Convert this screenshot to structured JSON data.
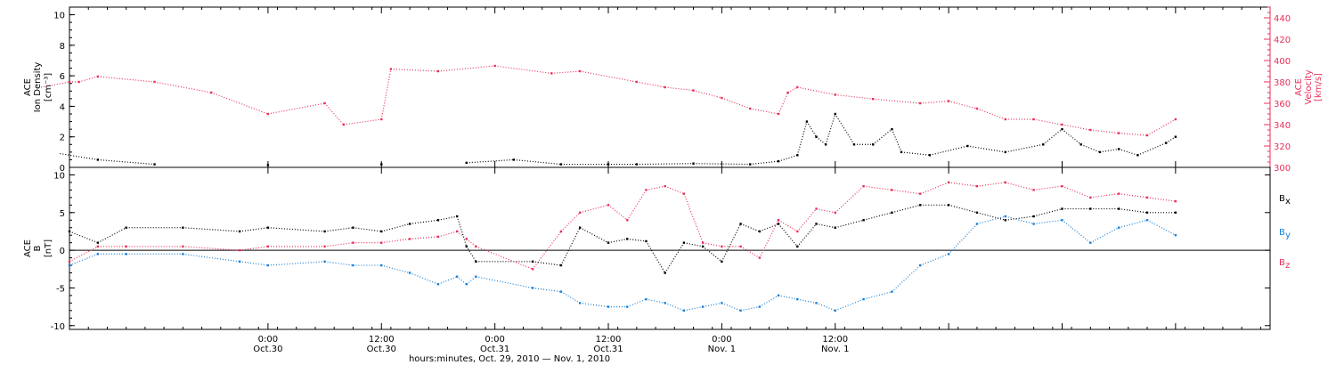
{
  "chart_data": [
    {
      "type": "scatter",
      "panel": "top",
      "title": "",
      "ylabel_left": [
        "ACE",
        "Ion Density",
        "[cm⁻³]"
      ],
      "ylabel_right": [
        "ACE",
        "Velocity",
        "[km/s]"
      ],
      "ylim_left": [
        0,
        10.5
      ],
      "yticks_left": [
        0,
        2,
        4,
        6,
        8,
        10
      ],
      "ylim_right": [
        300,
        450
      ],
      "yticks_right": [
        300,
        320,
        340,
        360,
        380,
        400,
        420,
        440
      ],
      "colors": {
        "density": "#000000",
        "velocity": "#e8305a"
      },
      "series": [
        {
          "name": "Ion Density",
          "axis": "left",
          "color": "#000000",
          "points": [
            [
              2,
              0.9
            ],
            [
              6,
              0.5
            ],
            [
              12,
              0.2
            ],
            [
              24,
              0.15
            ],
            [
              36,
              0.2
            ],
            [
              45,
              0.3
            ],
            [
              50,
              0.5
            ],
            [
              55,
              0.2
            ],
            [
              60,
              0.2
            ],
            [
              63,
              0.2
            ],
            [
              69,
              0.25
            ],
            [
              75,
              0.2
            ],
            [
              78,
              0.4
            ],
            [
              80,
              0.8
            ],
            [
              81,
              3.0
            ],
            [
              82,
              2.0
            ],
            [
              83,
              1.5
            ],
            [
              84,
              3.5
            ],
            [
              86,
              1.5
            ],
            [
              88,
              1.5
            ],
            [
              90,
              2.5
            ],
            [
              91,
              1.0
            ],
            [
              94,
              0.8
            ],
            [
              98,
              1.4
            ],
            [
              102,
              1.0
            ],
            [
              106,
              1.5
            ],
            [
              108,
              2.5
            ],
            [
              110,
              1.5
            ],
            [
              112,
              1.0
            ],
            [
              114,
              1.2
            ],
            [
              116,
              0.8
            ],
            [
              119,
              1.6
            ],
            [
              120,
              2.0
            ]
          ]
        },
        {
          "name": "Velocity",
          "axis": "right",
          "color": "#e8305a",
          "points": [
            [
              0,
              375
            ],
            [
              3,
              380
            ],
            [
              4,
              380
            ],
            [
              6,
              385
            ],
            [
              12,
              380
            ],
            [
              18,
              370
            ],
            [
              24,
              350
            ],
            [
              30,
              360
            ],
            [
              32,
              340
            ],
            [
              36,
              345
            ],
            [
              37,
              392
            ],
            [
              42,
              390
            ],
            [
              48,
              395
            ],
            [
              54,
              388
            ],
            [
              57,
              390
            ],
            [
              63,
              380
            ],
            [
              66,
              375
            ],
            [
              69,
              372
            ],
            [
              72,
              365
            ],
            [
              75,
              355
            ],
            [
              78,
              350
            ],
            [
              79,
              370
            ],
            [
              80,
              375
            ],
            [
              84,
              368
            ],
            [
              88,
              364
            ],
            [
              93,
              360
            ],
            [
              96,
              362
            ],
            [
              99,
              355
            ],
            [
              102,
              345
            ],
            [
              105,
              345
            ],
            [
              108,
              340
            ],
            [
              111,
              335
            ],
            [
              114,
              332
            ],
            [
              117,
              330
            ],
            [
              120,
              345
            ]
          ]
        }
      ]
    },
    {
      "type": "scatter",
      "panel": "bottom",
      "title": "",
      "ylabel": [
        "ACE",
        "B",
        "[nT]"
      ],
      "ylim": [
        -10.5,
        11
      ],
      "yticks": [
        -10,
        -5,
        0,
        5,
        10
      ],
      "xlabel": "hours:minutes, Oct. 29, 2010 — Nov. 1, 2010",
      "x_units": "hours since 0:00 Oct. 29, 2010",
      "xlim": [
        3,
        130
      ],
      "x_major_ticks": [
        24,
        36,
        48,
        60,
        72,
        84,
        96,
        108,
        120,
        132
      ],
      "x_tick_labels": [
        {
          "x": 24,
          "time": "0:00",
          "date": "Oct.30"
        },
        {
          "x": 36,
          "time": "12:00",
          "date": "Oct.30"
        },
        {
          "x": 48,
          "time": "0:00",
          "date": "Oct.31"
        },
        {
          "x": 60,
          "time": "12:00",
          "date": "Oct.31"
        },
        {
          "x": 72,
          "time": "0:00",
          "date": "Nov. 1"
        },
        {
          "x": 84,
          "time": "12:00",
          "date": "Nov. 1"
        }
      ],
      "legend": [
        {
          "label": "B",
          "sub": "x",
          "color": "#000000"
        },
        {
          "label": "B",
          "sub": "y",
          "color": "#1a7fd6"
        },
        {
          "label": "B",
          "sub": "z",
          "color": "#e8305a"
        }
      ],
      "series": [
        {
          "name": "Bx",
          "color": "#000000",
          "points": [
            [
              3,
              2.5
            ],
            [
              6,
              1.0
            ],
            [
              9,
              3.0
            ],
            [
              15,
              3.0
            ],
            [
              21,
              2.5
            ],
            [
              24,
              3.0
            ],
            [
              30,
              2.5
            ],
            [
              33,
              3.0
            ],
            [
              36,
              2.5
            ],
            [
              39,
              3.5
            ],
            [
              42,
              4.0
            ],
            [
              44,
              4.5
            ],
            [
              45,
              0.5
            ],
            [
              46,
              -1.5
            ],
            [
              52,
              -1.5
            ],
            [
              55,
              -2.0
            ],
            [
              57,
              3.0
            ],
            [
              60,
              1.0
            ],
            [
              62,
              1.5
            ],
            [
              64,
              1.2
            ],
            [
              66,
              -3.0
            ],
            [
              68,
              1.0
            ],
            [
              70,
              0.5
            ],
            [
              72,
              -1.5
            ],
            [
              74,
              3.5
            ],
            [
              76,
              2.5
            ],
            [
              78,
              3.5
            ],
            [
              80,
              0.5
            ],
            [
              82,
              3.5
            ],
            [
              84,
              3.0
            ],
            [
              87,
              4.0
            ],
            [
              90,
              5.0
            ],
            [
              93,
              6.0
            ],
            [
              96,
              6.0
            ],
            [
              99,
              5.0
            ],
            [
              102,
              4.0
            ],
            [
              105,
              4.5
            ],
            [
              108,
              5.5
            ],
            [
              111,
              5.5
            ],
            [
              114,
              5.5
            ],
            [
              117,
              5.0
            ],
            [
              120,
              5.0
            ]
          ]
        },
        {
          "name": "By",
          "color": "#1a7fd6",
          "points": [
            [
              3,
              -2.0
            ],
            [
              6,
              -0.5
            ],
            [
              9,
              -0.5
            ],
            [
              15,
              -0.5
            ],
            [
              21,
              -1.5
            ],
            [
              24,
              -2.0
            ],
            [
              30,
              -1.5
            ],
            [
              33,
              -2.0
            ],
            [
              36,
              -2.0
            ],
            [
              39,
              -3.0
            ],
            [
              42,
              -4.5
            ],
            [
              44,
              -3.5
            ],
            [
              45,
              -4.5
            ],
            [
              46,
              -3.5
            ],
            [
              52,
              -5.0
            ],
            [
              55,
              -5.5
            ],
            [
              57,
              -7.0
            ],
            [
              60,
              -7.5
            ],
            [
              62,
              -7.5
            ],
            [
              64,
              -6.5
            ],
            [
              66,
              -7.0
            ],
            [
              68,
              -8.0
            ],
            [
              70,
              -7.5
            ],
            [
              72,
              -7.0
            ],
            [
              74,
              -8.0
            ],
            [
              76,
              -7.5
            ],
            [
              78,
              -6.0
            ],
            [
              80,
              -6.5
            ],
            [
              82,
              -7.0
            ],
            [
              84,
              -8.0
            ],
            [
              87,
              -6.5
            ],
            [
              90,
              -5.5
            ],
            [
              93,
              -2.0
            ],
            [
              96,
              -0.5
            ],
            [
              99,
              3.5
            ],
            [
              102,
              4.5
            ],
            [
              105,
              3.5
            ],
            [
              108,
              4.0
            ],
            [
              111,
              1.0
            ],
            [
              114,
              3.0
            ],
            [
              117,
              4.0
            ],
            [
              120,
              2.0
            ]
          ]
        },
        {
          "name": "Bz",
          "color": "#e8305a",
          "points": [
            [
              3,
              -1.5
            ],
            [
              6,
              0.5
            ],
            [
              9,
              0.5
            ],
            [
              15,
              0.5
            ],
            [
              21,
              0.0
            ],
            [
              24,
              0.5
            ],
            [
              30,
              0.5
            ],
            [
              33,
              1.0
            ],
            [
              36,
              1.0
            ],
            [
              39,
              1.5
            ],
            [
              42,
              1.8
            ],
            [
              44,
              2.5
            ],
            [
              45,
              1.5
            ],
            [
              46,
              0.5
            ],
            [
              52,
              -2.5
            ],
            [
              55,
              2.5
            ],
            [
              57,
              5.0
            ],
            [
              60,
              6.0
            ],
            [
              62,
              4.0
            ],
            [
              64,
              8.0
            ],
            [
              66,
              8.5
            ],
            [
              68,
              7.5
            ],
            [
              70,
              1.0
            ],
            [
              72,
              0.5
            ],
            [
              74,
              0.5
            ],
            [
              76,
              -1.0
            ],
            [
              78,
              4.0
            ],
            [
              80,
              2.5
            ],
            [
              82,
              5.5
            ],
            [
              84,
              5.0
            ],
            [
              87,
              8.5
            ],
            [
              90,
              8.0
            ],
            [
              93,
              7.5
            ],
            [
              96,
              9.0
            ],
            [
              99,
              8.5
            ],
            [
              102,
              9.0
            ],
            [
              105,
              8.0
            ],
            [
              108,
              8.5
            ],
            [
              111,
              7.0
            ],
            [
              114,
              7.5
            ],
            [
              117,
              7.0
            ],
            [
              120,
              6.5
            ]
          ]
        }
      ]
    }
  ]
}
